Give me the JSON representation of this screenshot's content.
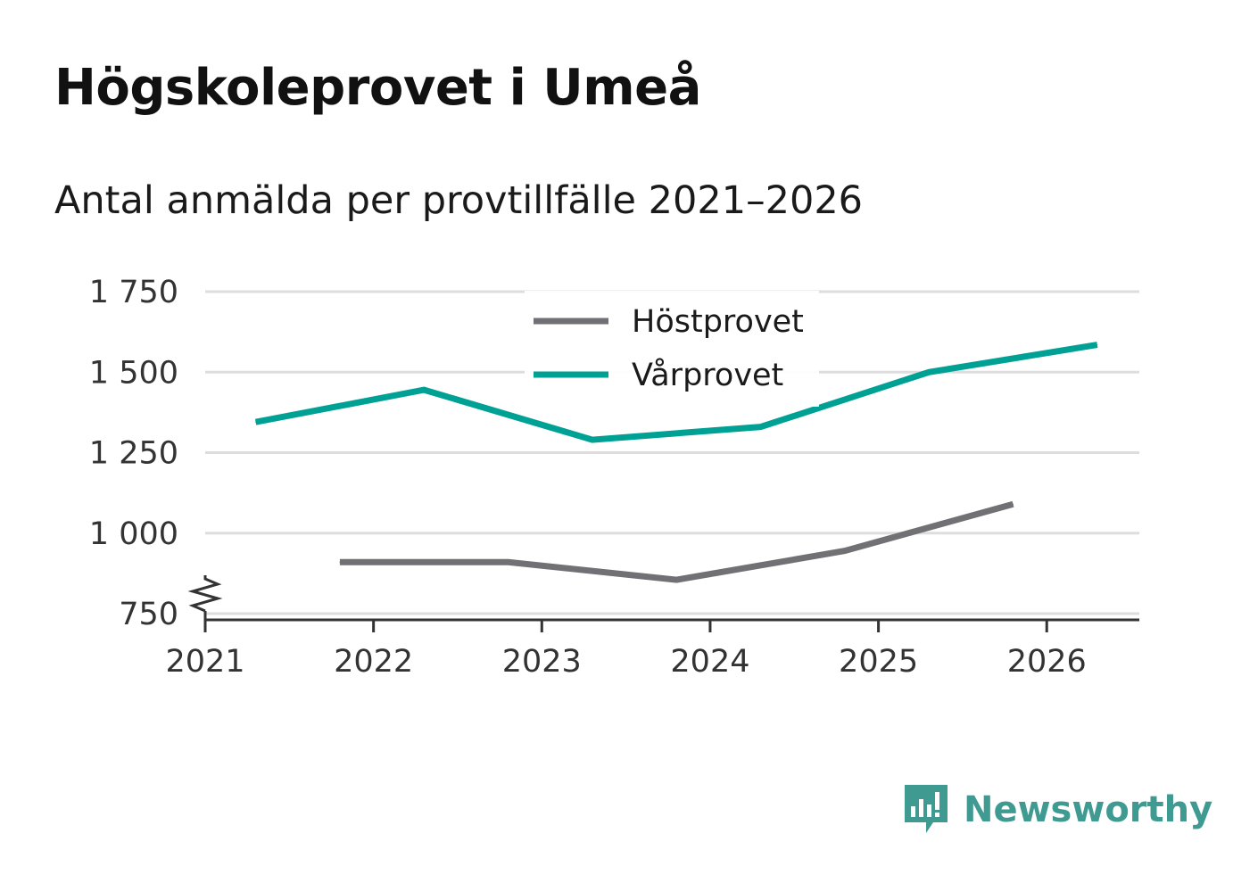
{
  "title": "Högskoleprovet i Umeå",
  "subtitle": "Antal anmälda per provtillfälle 2021–2026",
  "brand": {
    "name": "Newsworthy",
    "color": "#3f9a92"
  },
  "colors": {
    "hostprovet": "#707075",
    "varprovet": "#00a195",
    "grid": "#dddddd",
    "axis": "#333333"
  },
  "chart_data": {
    "type": "line",
    "title": "Högskoleprovet i Umeå",
    "subtitle": "Antal anmälda per provtillfälle 2021–2026",
    "xlabel": "",
    "ylabel": "",
    "xlim": [
      2021,
      2026.55
    ],
    "ylim": [
      750,
      1750
    ],
    "y_axis_break": true,
    "x_ticks": [
      2021,
      2022,
      2023,
      2024,
      2025,
      2026
    ],
    "x_tick_labels": [
      "2021",
      "2022",
      "2023",
      "2024",
      "2025",
      "2026"
    ],
    "y_ticks": [
      750,
      1000,
      1250,
      1500,
      1750
    ],
    "y_tick_labels": [
      "750",
      "1 000",
      "1 250",
      "1 500",
      "1 750"
    ],
    "grid": true,
    "legend_position": "top-center",
    "series": [
      {
        "name": "Höstprovet",
        "color": "#707075",
        "x": [
          2021.8,
          2022.8,
          2023.8,
          2024.8,
          2025.8
        ],
        "values": [
          910,
          910,
          855,
          945,
          1090
        ]
      },
      {
        "name": "Vårprovet",
        "color": "#00a195",
        "x": [
          2021.3,
          2022.3,
          2023.3,
          2024.3,
          2025.3,
          2026.3
        ],
        "values": [
          1345,
          1445,
          1290,
          1330,
          1500,
          1585
        ]
      }
    ]
  }
}
